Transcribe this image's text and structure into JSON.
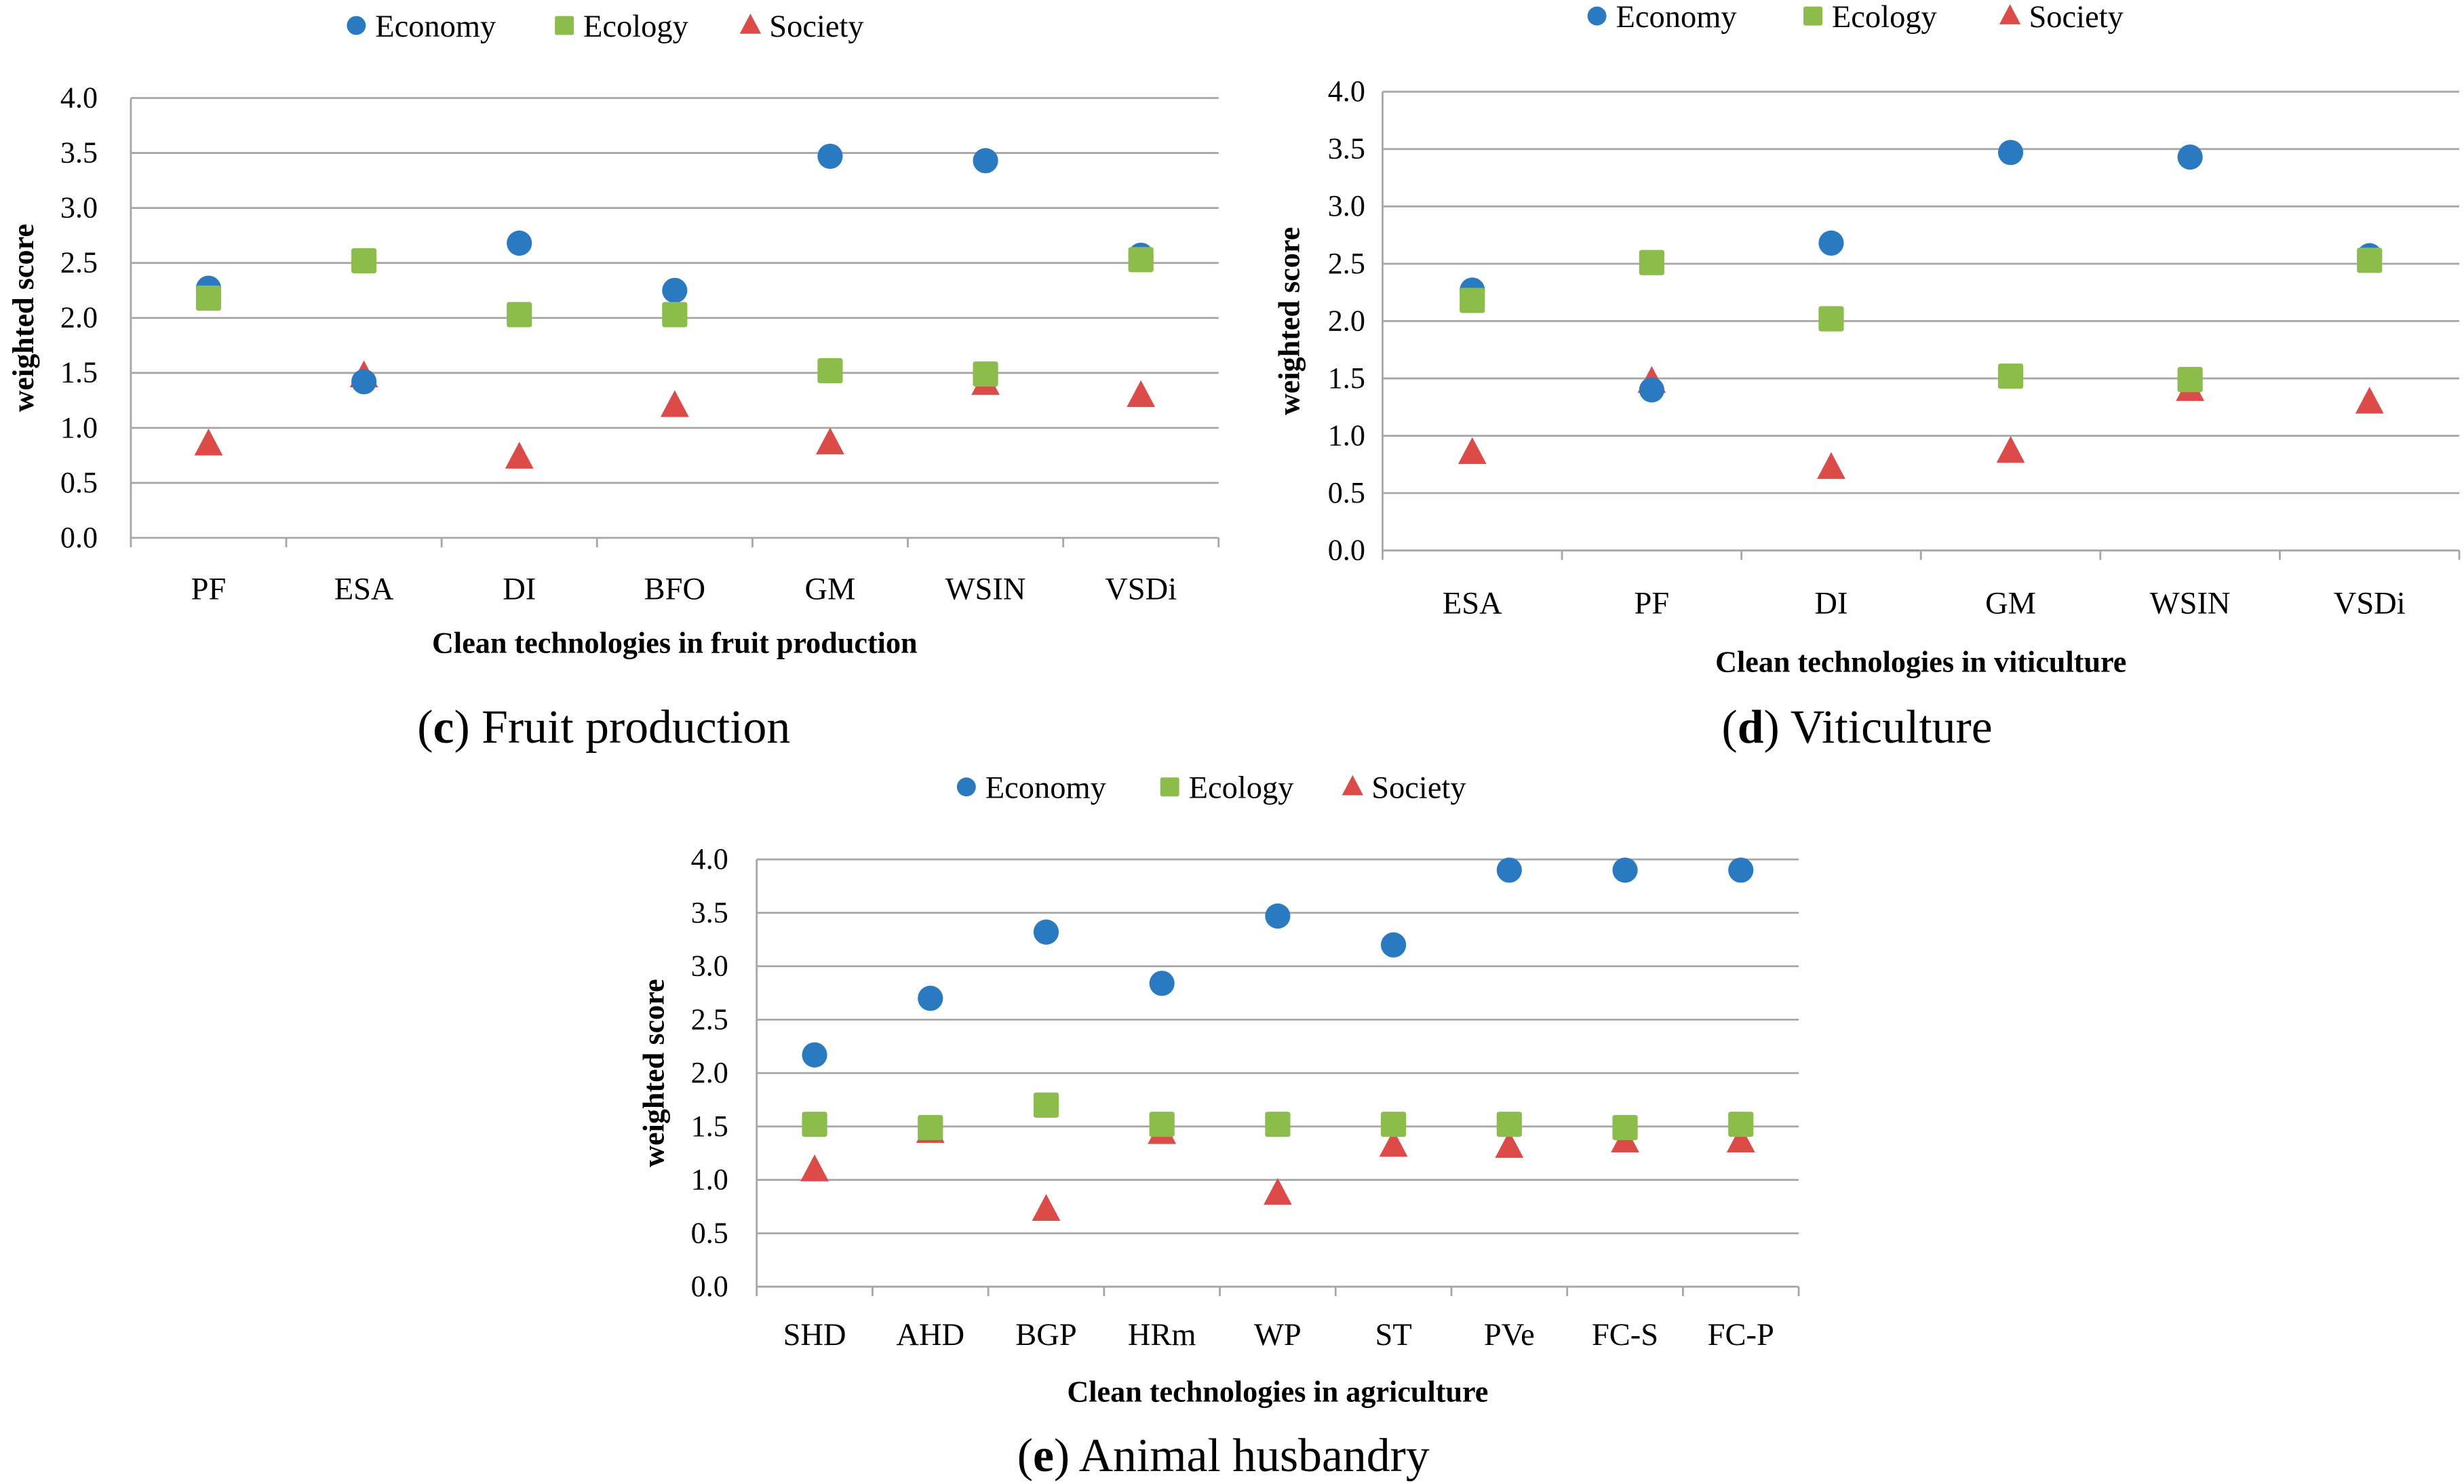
{
  "colors": {
    "economy": "#2a7ac2",
    "ecology": "#8cbc4a",
    "society": "#dd4b48",
    "grid": "#a6a6a6"
  },
  "legend": [
    "Economy",
    "Ecology",
    "Society"
  ],
  "chart_data": [
    {
      "type": "scatter",
      "caption_letter": "c",
      "caption_text": " Fruit production",
      "xlabel": "Clean technologies in fruit production",
      "ylabel": "weighted score",
      "ylim": [
        0,
        4
      ],
      "yticks": [
        "0.0",
        "0.5",
        "1.0",
        "1.5",
        "2.0",
        "2.5",
        "3.0",
        "3.5",
        "4.0"
      ],
      "grid": true,
      "legend_position": "top",
      "categories": [
        "PF",
        "ESA",
        "DI",
        "BFO",
        "GM",
        "WSIN",
        "VSDi"
      ],
      "series": [
        {
          "name": "Economy",
          "values": [
            2.27,
            1.42,
            2.68,
            2.25,
            3.47,
            3.43,
            2.57
          ]
        },
        {
          "name": "Ecology",
          "values": [
            2.18,
            2.52,
            2.03,
            2.03,
            1.52,
            1.49,
            2.53
          ]
        },
        {
          "name": "Society",
          "values": [
            0.85,
            1.47,
            0.73,
            1.2,
            0.86,
            1.4,
            1.29
          ]
        }
      ]
    },
    {
      "type": "scatter",
      "caption_letter": "d",
      "caption_text": " Viticulture",
      "xlabel": "Clean technologies in viticulture",
      "ylabel": "weighted score",
      "ylim": [
        0,
        4
      ],
      "yticks": [
        "0.0",
        "0.5",
        "1.0",
        "1.5",
        "2.0",
        "2.5",
        "3.0",
        "3.5",
        "4.0"
      ],
      "grid": true,
      "legend_position": "top",
      "categories": [
        "ESA",
        "PF",
        "DI",
        "GM",
        "WSIN",
        "VSDi"
      ],
      "series": [
        {
          "name": "Economy",
          "values": [
            2.27,
            1.4,
            2.68,
            3.47,
            3.43,
            2.57
          ]
        },
        {
          "name": "Ecology",
          "values": [
            2.18,
            2.51,
            2.02,
            1.52,
            1.49,
            2.53
          ]
        },
        {
          "name": "Society",
          "values": [
            0.85,
            1.47,
            0.72,
            0.86,
            1.4,
            1.29
          ]
        }
      ]
    },
    {
      "type": "scatter",
      "caption_letter": "e",
      "caption_text": " Animal husbandry",
      "xlabel": "Clean technologies in agriculture",
      "ylabel": "weighted score",
      "ylim": [
        0,
        4
      ],
      "yticks": [
        "0.0",
        "0.5",
        "1.0",
        "1.5",
        "2.0",
        "2.5",
        "3.0",
        "3.5",
        "4.0"
      ],
      "grid": true,
      "legend_position": "top",
      "categories": [
        "SHD",
        "AHD",
        "BGP",
        "HRm",
        "WP",
        "ST",
        "PVe",
        "FC-S",
        "FC-P"
      ],
      "series": [
        {
          "name": "Economy",
          "values": [
            2.17,
            2.7,
            3.32,
            2.84,
            3.47,
            3.2,
            3.9,
            3.9,
            3.9
          ]
        },
        {
          "name": "Ecology",
          "values": [
            1.52,
            1.49,
            1.7,
            1.52,
            1.52,
            1.52,
            1.52,
            1.49,
            1.52
          ]
        },
        {
          "name": "Society",
          "values": [
            1.09,
            1.45,
            0.72,
            1.44,
            0.87,
            1.32,
            1.31,
            1.36,
            1.36
          ]
        }
      ]
    }
  ]
}
